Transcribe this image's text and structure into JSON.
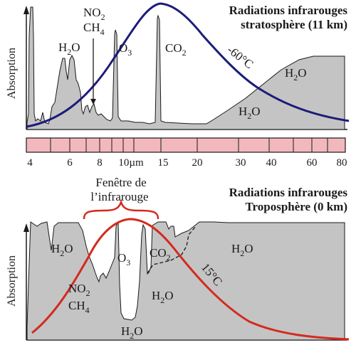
{
  "colors": {
    "absorption_fill": "#c4c4c4",
    "outline": "#1a1a1a",
    "strat_curve": "#1c1c7a",
    "trop_curve": "#d42a1e",
    "scale_bar": "#f2b8be",
    "brace": "#d42a1e"
  },
  "stratosphere": {
    "title_line1": "Radiations infrarouges",
    "title_line2": "stratosphère (11 km)",
    "y_axis_label": "Absorption",
    "temperature_label": "-60°C",
    "labels": {
      "no2_main": "NO",
      "no2_sub": "2",
      "ch4_main": "CH",
      "ch4_sub": "4",
      "h2o_left_main": "H",
      "h2o_left_sub": "2",
      "h2o_left_end": "O",
      "o3_main": "O",
      "o3_sub": "3",
      "co2_main": "CO",
      "co2_sub": "2",
      "h2o_right_main": "H",
      "h2o_right_sub": "2",
      "h2o_right_end": "O",
      "h2o_mid_main": "H",
      "h2o_mid_sub": "2",
      "h2o_mid_end": "O"
    }
  },
  "wavelength_scale": {
    "ticks": [
      "4",
      "6",
      "8",
      "10µm",
      "15",
      "20",
      "30",
      "40",
      "60",
      "80"
    ]
  },
  "troposphere": {
    "title_line1": "Radiations infrarouges",
    "title_line2": "Troposphère (0 km)",
    "y_axis_label": "Absorption",
    "window_label_line1": "Fenêtre de",
    "window_label_line2": "l’infrarouge",
    "temperature_label": "15°C",
    "labels": {
      "h2o_left_main": "H",
      "h2o_left_sub": "2",
      "h2o_left_end": "O",
      "o3_main": "O",
      "o3_sub": "3",
      "co2_main": "CO",
      "co2_sub": "2",
      "h2o_right_main": "H",
      "h2o_right_sub": "2",
      "h2o_right_end": "O",
      "no2_main": "NO",
      "no2_sub": "2",
      "ch4_main": "CH",
      "ch4_sub": "4",
      "h2o_center_main": "H",
      "h2o_center_sub": "2",
      "h2o_center_end": "O",
      "h2o_bottom_main": "H",
      "h2o_bottom_sub": "2",
      "h2o_bottom_end": "O"
    }
  }
}
